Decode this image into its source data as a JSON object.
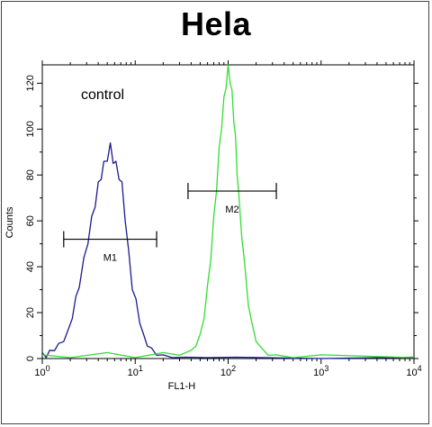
{
  "chart_data": {
    "type": "line",
    "title": "Hela",
    "xlabel": "FL1-H",
    "ylabel": "Counts",
    "x_scale": "log",
    "xlim": [
      1,
      10000
    ],
    "ylim": [
      0,
      128
    ],
    "x_ticks": [
      {
        "base": "10",
        "exp": "0"
      },
      {
        "base": "10",
        "exp": "1"
      },
      {
        "base": "10",
        "exp": "2"
      },
      {
        "base": "10",
        "exp": "3"
      },
      {
        "base": "10",
        "exp": "4"
      }
    ],
    "y_ticks": [
      0,
      20,
      40,
      60,
      80,
      100,
      120
    ],
    "annotations": [
      {
        "text": "control"
      }
    ],
    "markers": [
      {
        "label": "M1",
        "x_start": 1.7,
        "x_end": 17,
        "y": 52
      },
      {
        "label": "M2",
        "x_start": 37,
        "x_end": 330,
        "y": 73
      }
    ],
    "series": [
      {
        "color": "#1a1a8c",
        "x": [
          1.0,
          1.1,
          1.2,
          1.35,
          1.5,
          1.7,
          1.9,
          2.1,
          2.3,
          2.5,
          2.8,
          3.1,
          3.4,
          3.7,
          4.0,
          4.3,
          4.6,
          5.0,
          5.4,
          5.8,
          6.2,
          6.7,
          7.2,
          7.8,
          8.5,
          9.3,
          10.2,
          11.2,
          12.3,
          13.5,
          15,
          17,
          20,
          25,
          35,
          60,
          120,
          1000,
          10000
        ],
        "y": [
          2,
          1,
          3,
          4,
          6,
          8,
          12,
          18,
          25,
          33,
          42,
          52,
          60,
          68,
          75,
          80,
          84,
          88,
          92,
          87,
          84,
          80,
          75,
          62,
          45,
          32,
          24,
          16,
          10,
          6,
          4,
          2,
          1,
          1,
          0,
          1,
          0,
          0,
          0
        ]
      },
      {
        "color": "#33dd33",
        "x": [
          1.0,
          2.0,
          5.0,
          10.0,
          20.0,
          30.0,
          40.0,
          45.0,
          50.0,
          55.0,
          60.0,
          65.0,
          70.0,
          75.0,
          80.0,
          85.0,
          90.0,
          95.0,
          100.0,
          105.0,
          110.0,
          115.0,
          120.0,
          125.0,
          130.0,
          140.0,
          150.0,
          165.0,
          180.0,
          200.0,
          230.0,
          270.0,
          330.0,
          500.0,
          1000.0,
          10000.0
        ],
        "y": [
          1,
          1,
          2,
          1,
          2,
          2,
          3,
          6,
          10,
          18,
          30,
          45,
          60,
          75,
          90,
          102,
          112,
          120,
          126,
          122,
          115,
          105,
          95,
          82,
          70,
          55,
          40,
          25,
          15,
          8,
          4,
          2,
          1,
          1,
          1,
          1
        ]
      }
    ]
  }
}
